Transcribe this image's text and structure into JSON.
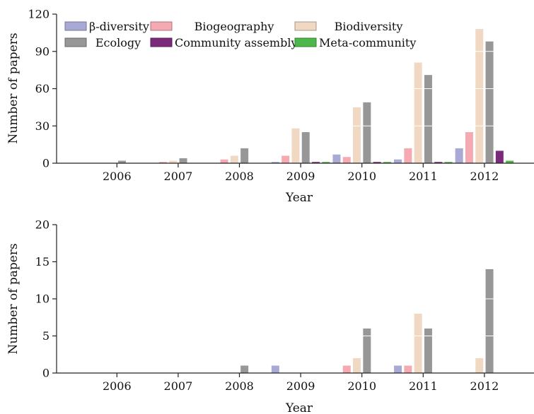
{
  "chart_data": [
    {
      "type": "bar",
      "categories": [
        "2006",
        "2007",
        "2008",
        "2009",
        "2010",
        "2011",
        "2012"
      ],
      "xlabel": "Year",
      "ylabel": "Number of papers",
      "ylim": [
        0,
        120
      ],
      "yticks": [
        0,
        30,
        60,
        90,
        120
      ],
      "grid": "horizontal lines inside bars",
      "legend": {
        "position": "top-left",
        "columns": 3
      },
      "series": [
        {
          "name": "β-diversity",
          "color": "#a9a9d6",
          "values": [
            0,
            0,
            0,
            1,
            7,
            3,
            12
          ]
        },
        {
          "name": "Biogeography",
          "color": "#f4aab0",
          "values": [
            0,
            1,
            3,
            6,
            5,
            12,
            25
          ]
        },
        {
          "name": "Biodiversity",
          "color": "#f0d8c3",
          "values": [
            0,
            2,
            6,
            28,
            45,
            81,
            108
          ]
        },
        {
          "name": "Ecology",
          "color": "#979797",
          "values": [
            2,
            4,
            12,
            25,
            49,
            71,
            98
          ]
        },
        {
          "name": "Community assembly",
          "color": "#7b2a7b",
          "values": [
            0,
            0,
            0,
            1,
            1,
            1,
            10
          ]
        },
        {
          "name": "Meta-community",
          "color": "#4cb84c",
          "values": [
            0,
            0,
            0,
            1,
            1,
            1,
            2
          ]
        }
      ]
    },
    {
      "type": "bar",
      "categories": [
        "2006",
        "2007",
        "2008",
        "2009",
        "2010",
        "2011",
        "2012"
      ],
      "xlabel": "Year",
      "ylabel": "Number of papers",
      "ylim": [
        0,
        20
      ],
      "yticks": [
        0,
        5,
        10,
        15,
        20
      ],
      "grid": "horizontal lines inside bars",
      "series": [
        {
          "name": "β-diversity",
          "color": "#a9a9d6",
          "values": [
            0,
            0,
            0,
            1,
            0,
            1,
            0
          ]
        },
        {
          "name": "Biogeography",
          "color": "#f4aab0",
          "values": [
            0,
            0,
            0,
            0,
            1,
            1,
            0
          ]
        },
        {
          "name": "Biodiversity",
          "color": "#f0d8c3",
          "values": [
            0,
            0,
            0,
            0,
            2,
            8,
            2
          ]
        },
        {
          "name": "Ecology",
          "color": "#979797",
          "values": [
            0,
            0,
            1,
            0,
            6,
            6,
            14
          ]
        },
        {
          "name": "Community assembly",
          "color": "#7b2a7b",
          "values": [
            0,
            0,
            0,
            0,
            0,
            0,
            0
          ]
        },
        {
          "name": "Meta-community",
          "color": "#4cb84c",
          "values": [
            0,
            0,
            0,
            0,
            0,
            0,
            0
          ]
        }
      ]
    }
  ]
}
